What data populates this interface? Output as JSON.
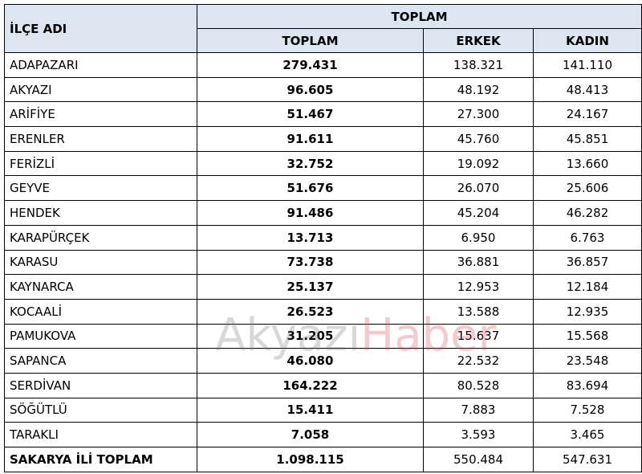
{
  "header": {
    "name_column": "İLÇE ADI",
    "group": "TOPLAM",
    "columns": [
      "TOPLAM",
      "ERKEK",
      "KADIN"
    ]
  },
  "rows": [
    [
      "ADAPAZARI",
      "279.431",
      "138.321",
      "141.110"
    ],
    [
      "AKYAZI",
      "96.605",
      "48.192",
      "48.413"
    ],
    [
      "ARİFİYE",
      "51.467",
      "27.300",
      "24.167"
    ],
    [
      "ERENLER",
      "91.611",
      "45.760",
      "45.851"
    ],
    [
      "FERİZLİ",
      "32.752",
      "19.092",
      "13.660"
    ],
    [
      "GEYVE",
      "51.676",
      "26.070",
      "25.606"
    ],
    [
      "HENDEK",
      "91.486",
      "45.204",
      "46.282"
    ],
    [
      "KARAPÜRÇEK",
      "13.713",
      "6.950",
      "6.763"
    ],
    [
      "KARASU",
      "73.738",
      "36.881",
      "36.857"
    ],
    [
      "KAYNARCA",
      "25.137",
      "12.953",
      "12.184"
    ],
    [
      "KOCAALİ",
      "26.523",
      "13.588",
      "12.935"
    ],
    [
      "PAMUKOVA",
      "31.205",
      "15.637",
      "15.568"
    ],
    [
      "SAPANCA",
      "46.080",
      "22.532",
      "23.548"
    ],
    [
      "SERDİVAN",
      "164.222",
      "80.528",
      "83.694"
    ],
    [
      "SÖĞÜTLÜ",
      "15.411",
      "7.883",
      "7.528"
    ],
    [
      "TARAKLI",
      "7.058",
      "3.593",
      "3.465"
    ]
  ],
  "total_row": [
    "SAKARYA İLİ TOPLAM",
    "1.098.115",
    "550.484",
    "547.631"
  ],
  "watermark": [
    "Akyazı",
    "Haber"
  ]
}
